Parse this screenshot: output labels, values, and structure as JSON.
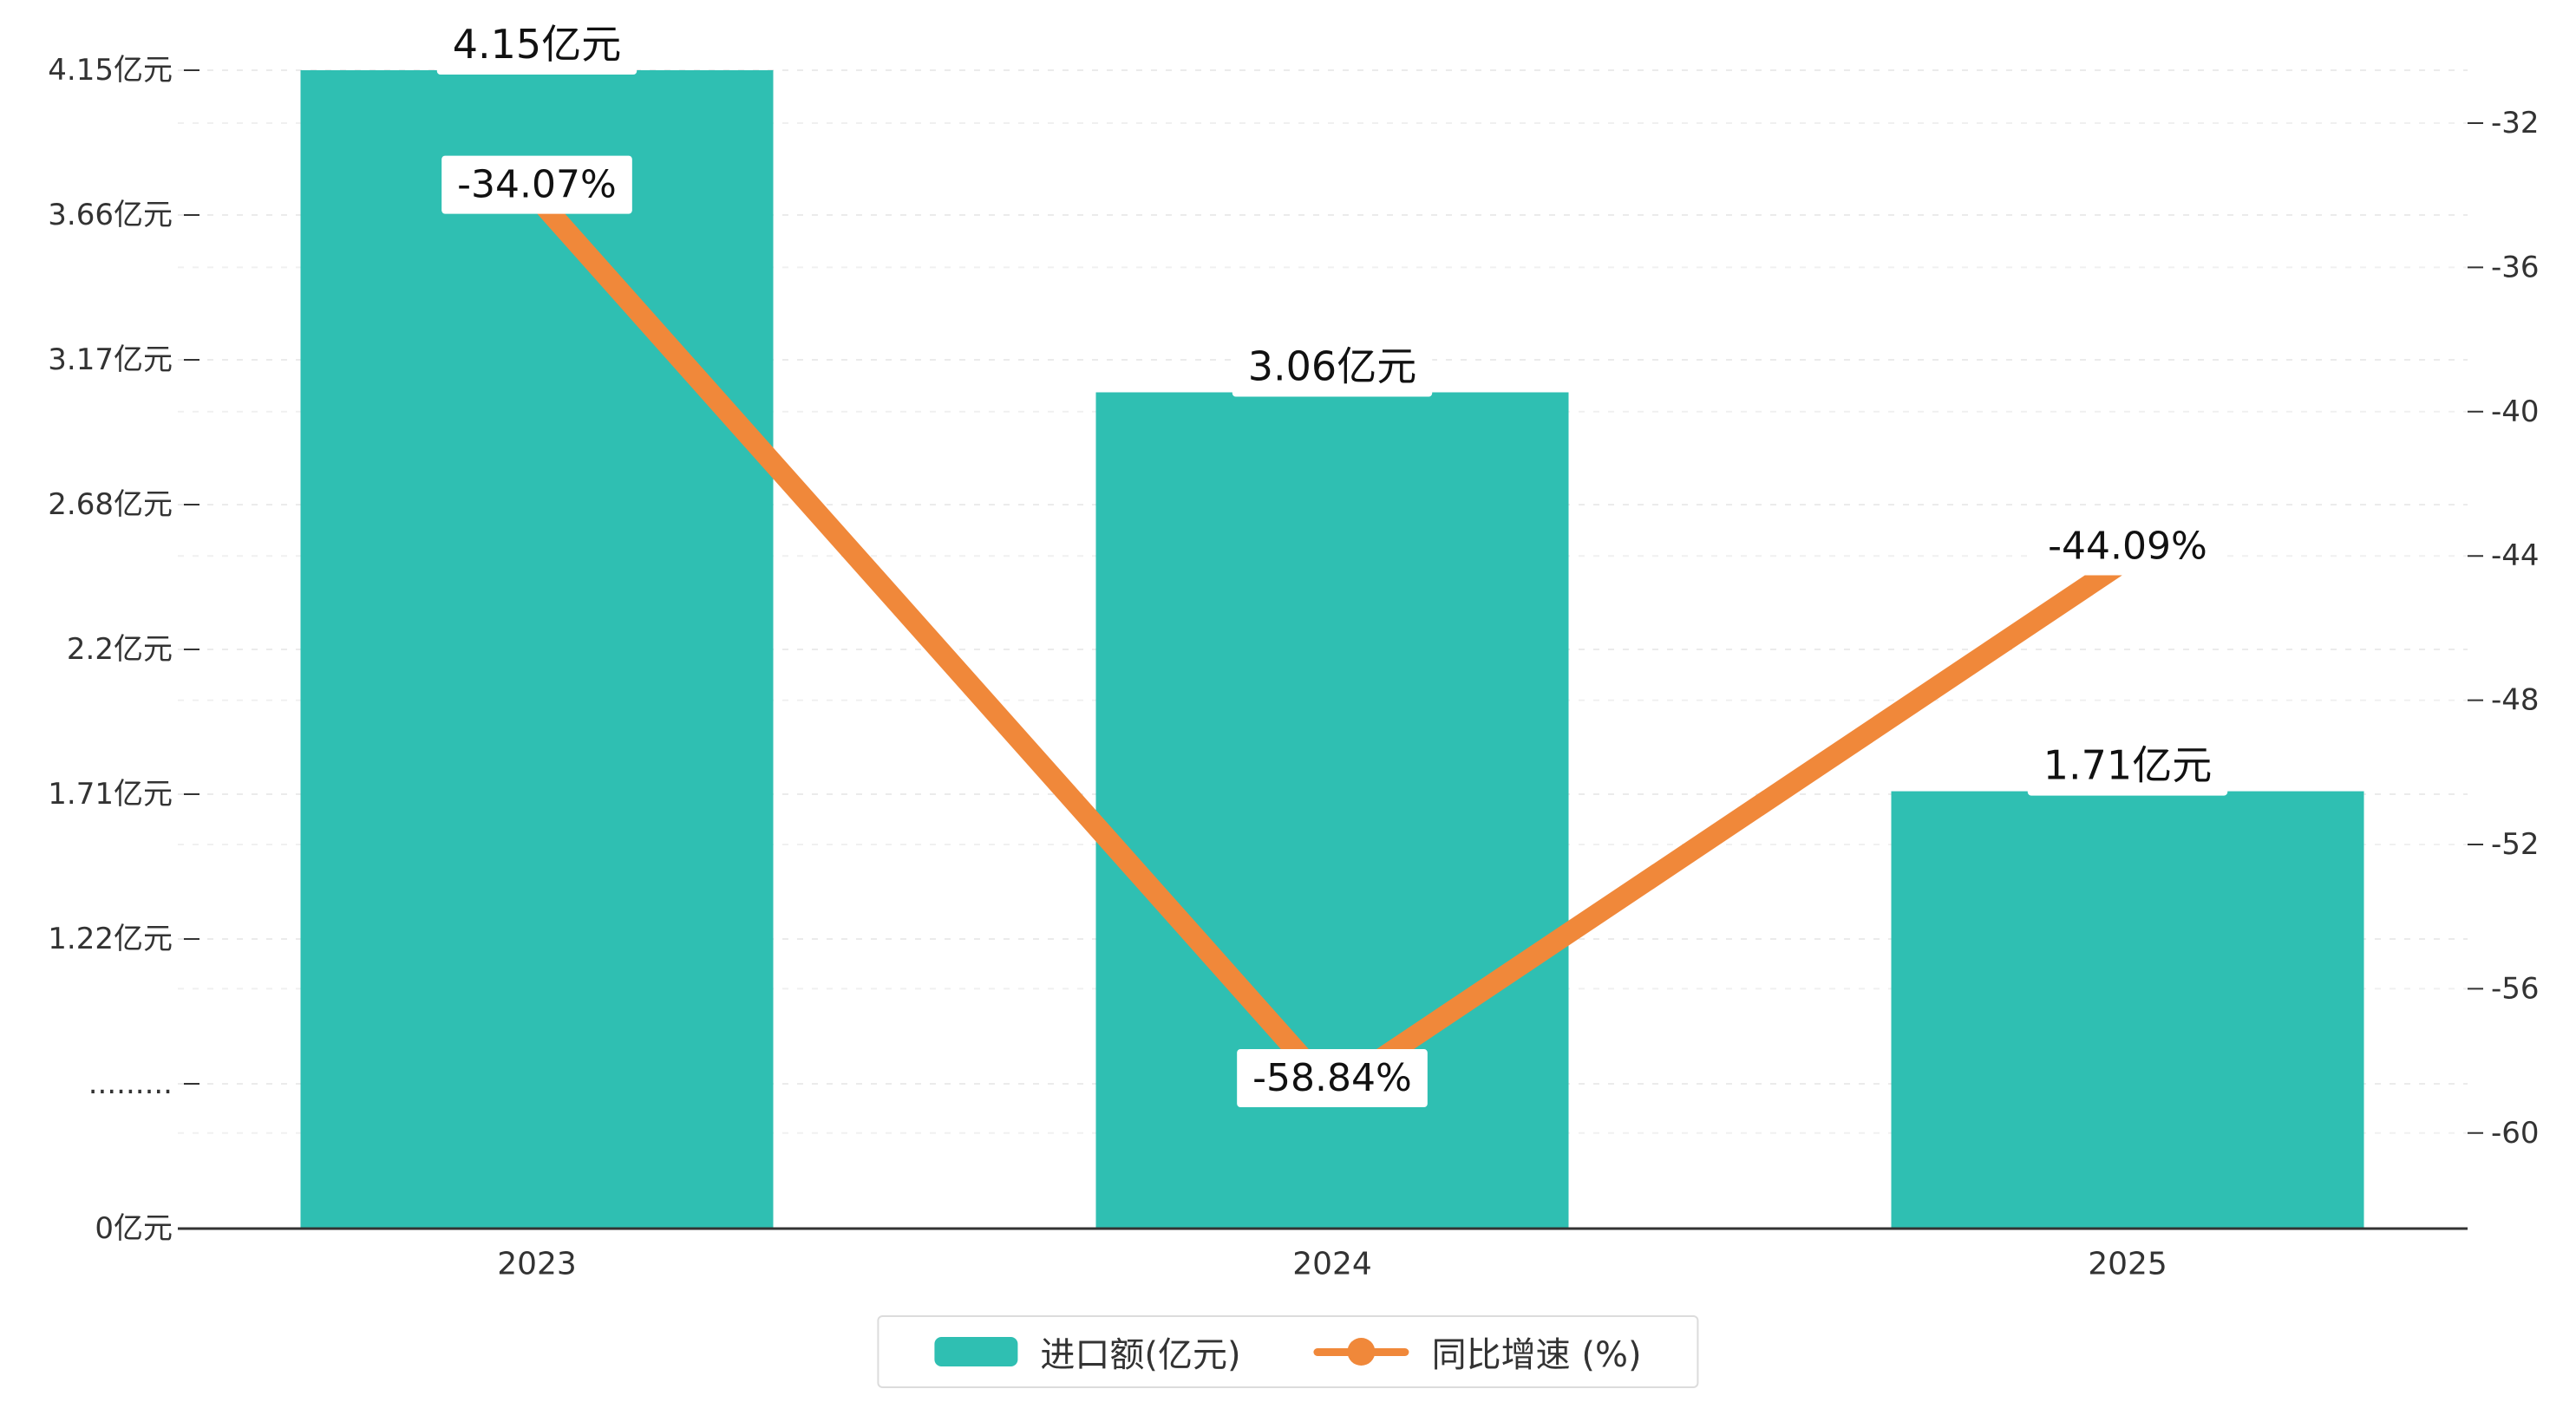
{
  "chart_data": {
    "type": "bar",
    "combo": "bar+line-dual-axis",
    "title": "",
    "categories": [
      "2023",
      "2024",
      "2025"
    ],
    "series": [
      {
        "name": "进口额(亿元)",
        "type": "bar",
        "axis": "left",
        "color": "#2FBFB2",
        "values": [
          4.15,
          3.06,
          1.71
        ],
        "labels": [
          "4.15亿元",
          "3.06亿元",
          "1.71亿元"
        ]
      },
      {
        "name": "同比增速 (%)",
        "type": "line",
        "axis": "right",
        "color": "#F0883A",
        "values": [
          -34.07,
          -58.84,
          -44.09
        ],
        "labels": [
          "-34.07%",
          "-58.84%",
          "-44.09%"
        ]
      }
    ],
    "left_axis": {
      "unit": "亿元",
      "tick_labels": [
        "4.15亿元",
        "3.66亿元",
        "3.17亿元",
        "2.68亿元",
        "2.2亿元",
        "1.71亿元",
        "1.22亿元",
        ".........",
        "0亿元"
      ],
      "tick_values": [
        4.15,
        3.66,
        3.17,
        2.68,
        2.2,
        1.71,
        1.22,
        null,
        0
      ],
      "has_break": true
    },
    "right_axis": {
      "tick_labels": [
        "-32",
        "-36",
        "-40",
        "-44",
        "-48",
        "-52",
        "-56",
        "-60"
      ],
      "max": -32,
      "min": -60,
      "step": 4
    },
    "grid": true,
    "legend_position": "bottom",
    "text_color": "#333333",
    "grid_color": "#ebebeb"
  }
}
